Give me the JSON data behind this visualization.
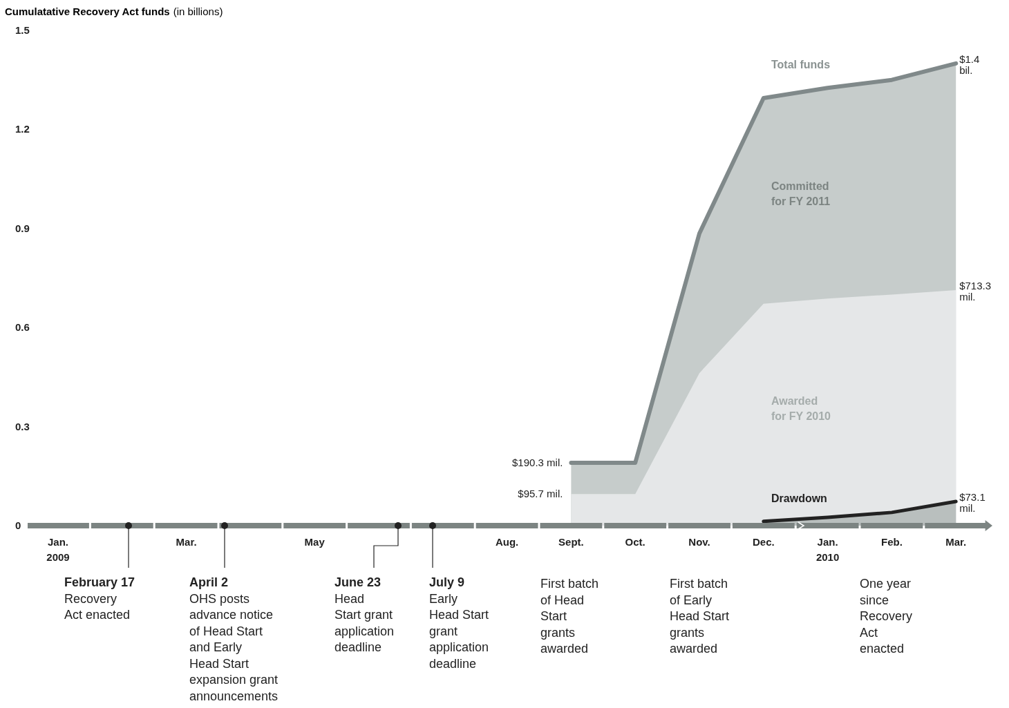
{
  "chart_data": {
    "type": "area",
    "title": "Cumulatative Recovery Act funds",
    "subtitle": "(in billions)",
    "categories": [
      "Jan.\n2009",
      null,
      "Mar.",
      null,
      "May",
      null,
      null,
      "Aug.",
      "Sept.",
      "Oct.",
      "Nov.",
      "Dec.",
      "Jan.\n2010",
      "Feb.",
      "Mar."
    ],
    "series": [
      {
        "name": "Total funds",
        "color": "#c6cccb",
        "values": [
          null,
          null,
          null,
          null,
          null,
          null,
          null,
          null,
          0.1903,
          0.1903,
          0.885,
          1.295,
          1.326,
          1.35,
          1.4
        ],
        "value_labels": [
          null,
          null,
          null,
          null,
          null,
          null,
          null,
          null,
          null,
          null,
          null,
          null,
          null,
          null,
          "$1.4\nbil."
        ]
      },
      {
        "name": "Awarded\nfor FY 2010",
        "color": "#e5e7e8",
        "values": [
          null,
          null,
          null,
          null,
          null,
          null,
          null,
          null,
          0.0957,
          0.0957,
          0.462,
          0.672,
          0.688,
          0.7,
          0.7133
        ]
      },
      {
        "name": "Drawdown",
        "color": "#222222",
        "values": [
          null,
          null,
          null,
          null,
          null,
          null,
          null,
          null,
          null,
          null,
          null,
          0.013,
          0.025,
          0.04,
          0.0731
        ]
      }
    ],
    "ylim": [
      0,
      1.5
    ],
    "yticks": [
      0,
      0.3,
      0.6,
      0.9,
      1.2,
      1.5
    ],
    "annotations": [
      "Committed\nfor FY 2011",
      "February 17\nRecovery\nAct enacted",
      "April 2\nOHS posts\nadvance notice\nof Head Start\nand Early\nHead Start\nexpansion grant\nannouncements",
      "June 23\nHead\nStart grant\napplication\ndeadline",
      "July 9\nEarly\nHead Start\ngrant\napplication\ndeadline",
      "First batch\nof Head\nStart\ngrants\nawarded",
      "First batch\nof Early\nHead Start\ngrants\nawarded",
      "One year\nsince\nRecovery\nAct\nenacted",
      "$190.3 mil.",
      "$95.7 mil.",
      "$713.3\nmil.",
      "$73.1\nmil."
    ]
  }
}
